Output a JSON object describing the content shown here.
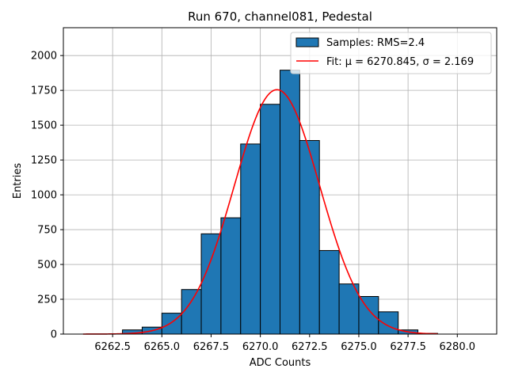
{
  "chart_data": {
    "type": "bar",
    "title": "Run 670, channel081, Pedestal",
    "xlabel": "ADC Counts",
    "ylabel": "Entries",
    "xlim": [
      6260.0,
      6282.0
    ],
    "ylim": [
      0,
      2200
    ],
    "grid": true,
    "legend_position": "top-right",
    "x_ticks": [
      6262.5,
      6265.0,
      6267.5,
      6270.0,
      6272.5,
      6275.0,
      6277.5,
      6280.0
    ],
    "x_tick_labels": [
      "6262.5",
      "6265.0",
      "6267.5",
      "6270.0",
      "6272.5",
      "6275.0",
      "6277.5",
      "6280.0"
    ],
    "y_ticks": [
      0,
      250,
      500,
      750,
      1000,
      1250,
      1500,
      1750,
      2000
    ],
    "y_tick_labels": [
      "0",
      "250",
      "500",
      "750",
      "1000",
      "1250",
      "1500",
      "1750",
      "2000"
    ],
    "histogram": {
      "name": "Samples: RMS=2.4",
      "color": "#1f77b4",
      "edge_color": "#000000",
      "bin_edges": [
        6261,
        6262,
        6263,
        6264,
        6265,
        6266,
        6267,
        6268,
        6269,
        6270,
        6271,
        6272,
        6273,
        6274,
        6275,
        6276,
        6277,
        6278,
        6279,
        6280,
        6281
      ],
      "counts": [
        0,
        0,
        30,
        50,
        150,
        320,
        720,
        835,
        1365,
        1650,
        1895,
        1390,
        600,
        360,
        270,
        160,
        30,
        5,
        0,
        0
      ]
    },
    "fit": {
      "name": "Fit: μ = 6270.845, σ = 2.169",
      "color": "#ff0000",
      "mu": 6270.845,
      "sigma": 2.169,
      "amplitude": 1755,
      "x_range": [
        6261.0,
        6279.0
      ]
    }
  }
}
